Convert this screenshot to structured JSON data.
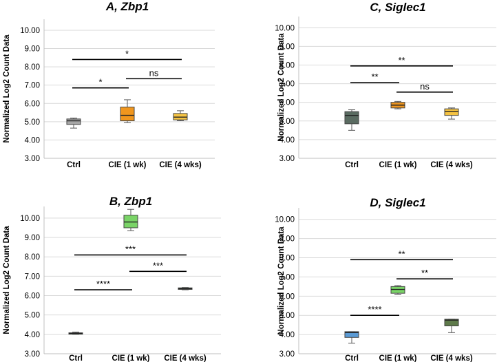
{
  "chart_data": [
    {
      "type": "box",
      "title": "A, Zbp1",
      "ylabel": "Normalized Log2 Count Data",
      "ylim": [
        3,
        10.6
      ],
      "yticks": [
        "3.00",
        "4.00",
        "5.00",
        "6.00",
        "7.00",
        "8.00",
        "9.00",
        "10.00"
      ],
      "categories": [
        "Ctrl",
        "CIE (1 wk)",
        "CIE (4 wks)"
      ],
      "boxes": [
        {
          "min": 4.65,
          "q1": 4.85,
          "median": 5.05,
          "q3": 5.15,
          "max": 5.2,
          "color": "#a6a6a6"
        },
        {
          "min": 4.95,
          "q1": 5.05,
          "median": 5.35,
          "q3": 5.8,
          "max": 6.2,
          "color": "#f0961e"
        },
        {
          "min": 5.05,
          "q1": 5.1,
          "median": 5.25,
          "q3": 5.45,
          "max": 5.6,
          "color": "#f5c342"
        }
      ],
      "significance": [
        {
          "from": 0,
          "to": 2,
          "y": 8.4,
          "label": "*"
        },
        {
          "from": 0,
          "to": 1,
          "y": 6.85,
          "label": "*"
        },
        {
          "from": 1,
          "to": 2,
          "y": 7.35,
          "label": "ns"
        }
      ]
    },
    {
      "type": "box",
      "title": "C, Siglec1",
      "ylabel": "Normalized Log2 Count Data",
      "ylim": [
        3,
        10.6
      ],
      "yticks": [
        "3.00",
        "4.00",
        "5.00",
        "6.00",
        "7.00",
        "8.00",
        "9.00",
        "10.00"
      ],
      "categories": [
        "Ctrl",
        "CIE (1 wk)",
        "CIE (4 wks)"
      ],
      "boxes": [
        {
          "min": 4.5,
          "q1": 4.85,
          "median": 5.3,
          "q3": 5.5,
          "max": 5.6,
          "color": "#5a6b61"
        },
        {
          "min": 5.65,
          "q1": 5.7,
          "median": 5.85,
          "q3": 6.0,
          "max": 6.05,
          "color": "#f0961e"
        },
        {
          "min": 5.1,
          "q1": 5.3,
          "median": 5.5,
          "q3": 5.65,
          "max": 5.7,
          "color": "#f5c342"
        }
      ],
      "significance": [
        {
          "from": 0,
          "to": 2,
          "y": 7.95,
          "label": "**"
        },
        {
          "from": 0,
          "to": 1,
          "y": 7.05,
          "label": "**"
        },
        {
          "from": 1,
          "to": 2,
          "y": 6.55,
          "label": "ns"
        }
      ]
    },
    {
      "type": "box",
      "title": "B, Zbp1",
      "ylabel": "Normalized Log2 Count Data",
      "ylim": [
        3,
        10.6
      ],
      "yticks": [
        "3.00",
        "4.00",
        "5.00",
        "6.00",
        "7.00",
        "8.00",
        "9.00",
        "10.00"
      ],
      "categories": [
        "Ctrl",
        "CIE (1 wk)",
        "CIE (4 wks)"
      ],
      "boxes": [
        {
          "min": 4.0,
          "q1": 4.02,
          "median": 4.05,
          "q3": 4.08,
          "max": 4.12,
          "color": "#7ad467"
        },
        {
          "min": 9.35,
          "q1": 9.5,
          "median": 9.8,
          "q3": 10.15,
          "max": 10.45,
          "color": "#7ad467"
        },
        {
          "min": 6.3,
          "q1": 6.32,
          "median": 6.36,
          "q3": 6.4,
          "max": 6.42,
          "color": "#5e8f4a"
        }
      ],
      "significance": [
        {
          "from": 0,
          "to": 2,
          "y": 8.1,
          "label": "***"
        },
        {
          "from": 0,
          "to": 1,
          "y": 6.3,
          "label": "****"
        },
        {
          "from": 1,
          "to": 2,
          "y": 7.25,
          "label": "***"
        }
      ]
    },
    {
      "type": "box",
      "title": "D, Siglec1",
      "ylabel": "Normalized Log2 Count Data",
      "ylim": [
        3,
        10.6
      ],
      "yticks": [
        "3.00",
        "4.00",
        "5.00",
        "6.00",
        "7.00",
        "8.00",
        "9.00",
        "10.00"
      ],
      "categories": [
        "Ctrl",
        "CIE (1 wk)",
        "CIE (4 wks)"
      ],
      "boxes": [
        {
          "min": 3.55,
          "q1": 3.85,
          "median": 4.1,
          "q3": 4.15,
          "max": 4.15,
          "color": "#5b9bd5"
        },
        {
          "min": 6.1,
          "q1": 6.15,
          "median": 6.35,
          "q3": 6.5,
          "max": 6.55,
          "color": "#7ad467"
        },
        {
          "min": 4.1,
          "q1": 4.45,
          "median": 4.75,
          "q3": 4.8,
          "max": 4.8,
          "color": "#5e7a4a"
        }
      ],
      "significance": [
        {
          "from": 0,
          "to": 2,
          "y": 7.9,
          "label": "**"
        },
        {
          "from": 0,
          "to": 1,
          "y": 5.0,
          "label": "****"
        },
        {
          "from": 1,
          "to": 2,
          "y": 6.9,
          "label": "**"
        }
      ]
    }
  ]
}
